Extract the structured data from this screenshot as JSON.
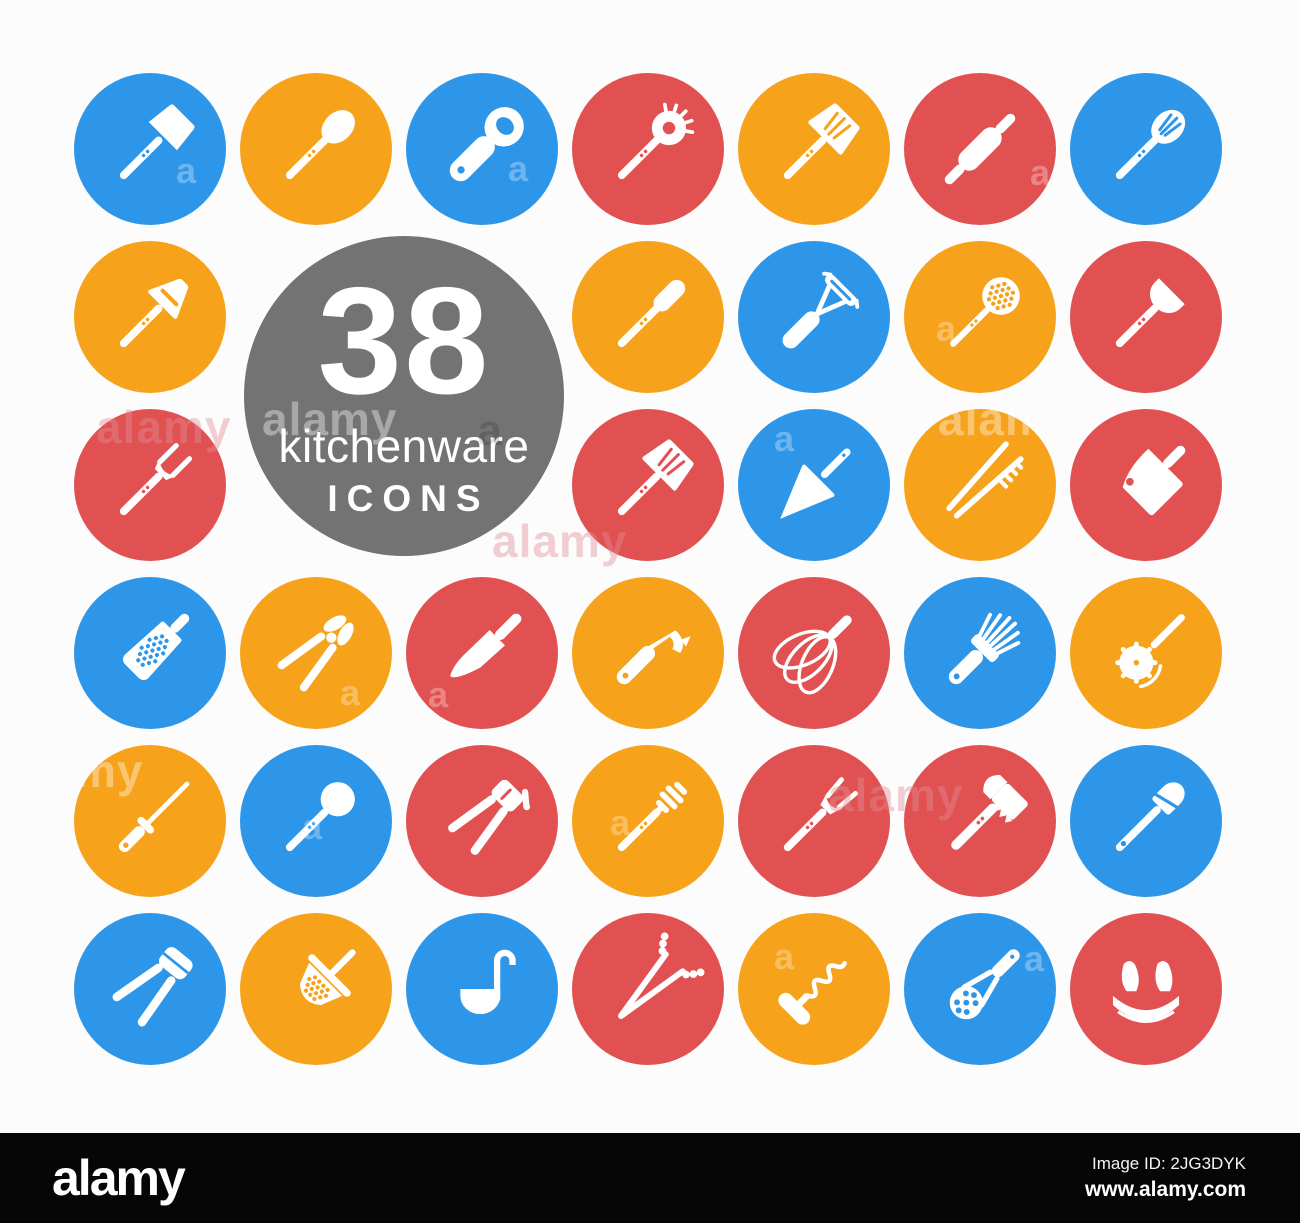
{
  "badge": {
    "count": "38",
    "line1": "kitchenware",
    "line2": "ICONS"
  },
  "palette": {
    "blue": "#2E96E8",
    "orange": "#F7A21B",
    "red": "#E15152",
    "badge_gray": "#737373",
    "bar_black": "#060606",
    "background": "#FCFCFC",
    "icon_white": "#FFFFFF"
  },
  "footer": {
    "brand": "alamy",
    "image_id": "Image ID: 2JG3DYK",
    "url": "www.alamy.com"
  },
  "watermark": {
    "brand": "alamy",
    "tile_letter": "a"
  },
  "icons": [
    {
      "name": "spatula",
      "color": "blue",
      "row": 1,
      "col": 1
    },
    {
      "name": "spoon",
      "color": "orange",
      "row": 1,
      "col": 2
    },
    {
      "name": "bottle-opener",
      "color": "blue",
      "row": 1,
      "col": 3
    },
    {
      "name": "spaghetti-server",
      "color": "red",
      "row": 1,
      "col": 4
    },
    {
      "name": "slotted-turner",
      "color": "orange",
      "row": 1,
      "col": 5
    },
    {
      "name": "rolling-pin",
      "color": "red",
      "row": 1,
      "col": 6
    },
    {
      "name": "slotted-spoon",
      "color": "blue",
      "row": 1,
      "col": 7
    },
    {
      "name": "cheese-slicer",
      "color": "orange",
      "row": 2,
      "col": 1
    },
    {
      "name": "flat-spatula",
      "color": "orange",
      "row": 2,
      "col": 4
    },
    {
      "name": "vegetable-peeler",
      "color": "blue",
      "row": 2,
      "col": 5
    },
    {
      "name": "skimmer",
      "color": "orange",
      "row": 2,
      "col": 6
    },
    {
      "name": "ladle",
      "color": "red",
      "row": 2,
      "col": 7
    },
    {
      "name": "carving-fork",
      "color": "red",
      "row": 3,
      "col": 1
    },
    {
      "name": "slotted-spatula",
      "color": "red",
      "row": 3,
      "col": 4
    },
    {
      "name": "cake-server",
      "color": "blue",
      "row": 3,
      "col": 5
    },
    {
      "name": "pasta-tongs",
      "color": "orange",
      "row": 3,
      "col": 6
    },
    {
      "name": "cleaver",
      "color": "red",
      "row": 3,
      "col": 7
    },
    {
      "name": "grater",
      "color": "blue",
      "row": 4,
      "col": 1
    },
    {
      "name": "nutcracker",
      "color": "orange",
      "row": 4,
      "col": 2
    },
    {
      "name": "chef-knife",
      "color": "red",
      "row": 4,
      "col": 3
    },
    {
      "name": "can-opener",
      "color": "orange",
      "row": 4,
      "col": 4
    },
    {
      "name": "whisk",
      "color": "red",
      "row": 4,
      "col": 5
    },
    {
      "name": "basting-brush",
      "color": "blue",
      "row": 4,
      "col": 6
    },
    {
      "name": "pizza-cutter",
      "color": "orange",
      "row": 4,
      "col": 7
    },
    {
      "name": "sharpening-steel",
      "color": "orange",
      "row": 5,
      "col": 1
    },
    {
      "name": "soup-spoon",
      "color": "blue",
      "row": 5,
      "col": 2
    },
    {
      "name": "jar-opener",
      "color": "red",
      "row": 5,
      "col": 3
    },
    {
      "name": "honey-dipper",
      "color": "orange",
      "row": 5,
      "col": 4
    },
    {
      "name": "bbq-fork",
      "color": "red",
      "row": 5,
      "col": 5
    },
    {
      "name": "meat-tenderizer",
      "color": "red",
      "row": 5,
      "col": 6
    },
    {
      "name": "rubber-spatula",
      "color": "blue",
      "row": 5,
      "col": 7
    },
    {
      "name": "garlic-press",
      "color": "blue",
      "row": 6,
      "col": 1
    },
    {
      "name": "strainer",
      "color": "orange",
      "row": 6,
      "col": 2
    },
    {
      "name": "soup-ladle",
      "color": "blue",
      "row": 6,
      "col": 3
    },
    {
      "name": "tongs",
      "color": "red",
      "row": 6,
      "col": 4
    },
    {
      "name": "corkscrew",
      "color": "orange",
      "row": 6,
      "col": 5
    },
    {
      "name": "potato-masher",
      "color": "blue",
      "row": 6,
      "col": 6
    },
    {
      "name": "mezzaluna",
      "color": "red",
      "row": 6,
      "col": 7
    }
  ]
}
